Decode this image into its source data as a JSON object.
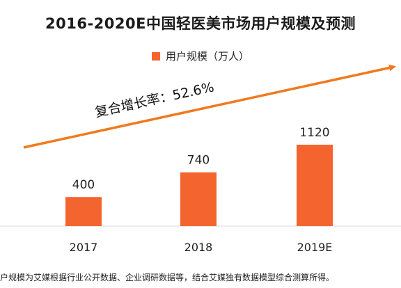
{
  "chart_data": {
    "type": "bar",
    "title": "2016-2020E中国轻医美市场用户规模及预测",
    "categories": [
      "2017",
      "2018",
      "2019E"
    ],
    "series": [
      {
        "name": "用户规模（万人）",
        "values": [
          400,
          740,
          1120
        ]
      }
    ],
    "data_labels": [
      "400",
      "740",
      "1120"
    ],
    "xlabel": "",
    "ylabel": "",
    "ylim": [
      0,
      1250
    ],
    "grid": false,
    "legend_position": "top-center",
    "annotation": "复合增长率：52.6%",
    "bar_color": "#f4642e",
    "trend_arrow_color": "#f07a1e"
  },
  "footnote": "户规模为艾媒根据行业公开数据、企业调研数据等，结合艾媒独有数据模型综合测算所得。"
}
